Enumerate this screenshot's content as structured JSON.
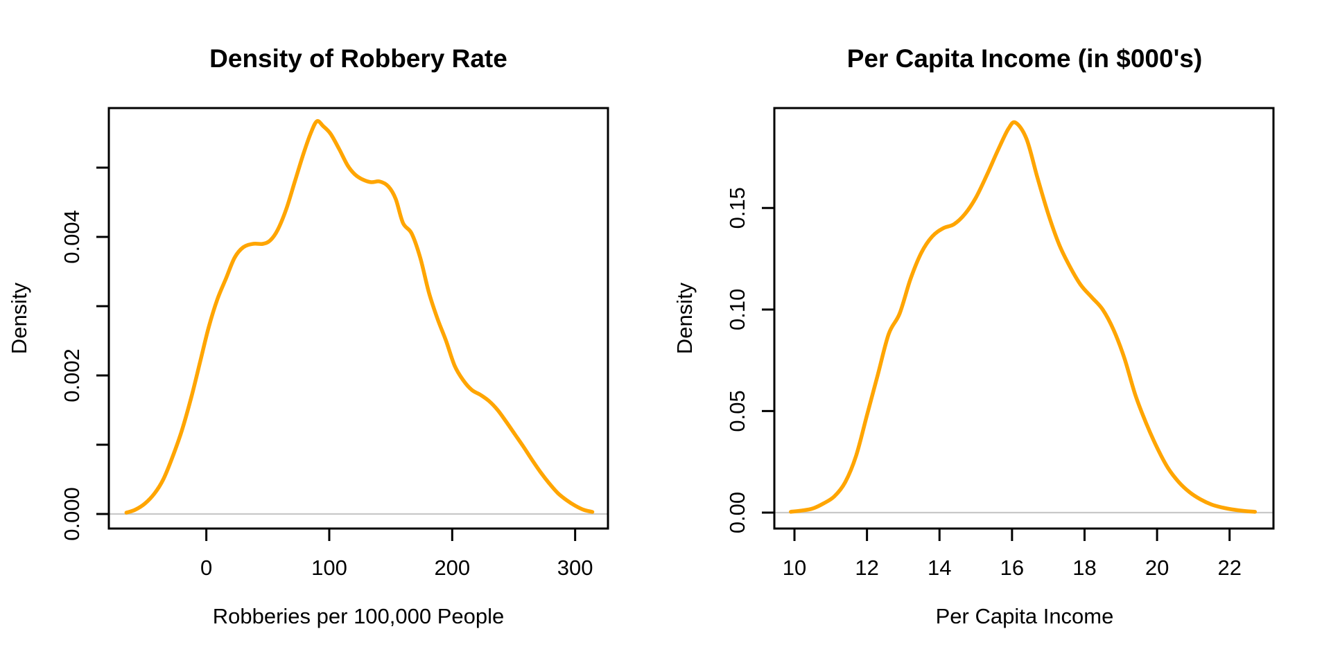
{
  "figure": {
    "background": "#ffffff",
    "axis_color": "#000000",
    "text_color": "#000000",
    "curve_color": "#FFA500",
    "zero_line_color": "#c8c8c8"
  },
  "chart_data": [
    {
      "type": "line",
      "variant": "kernel-density",
      "title": "Density of Robbery Rate",
      "xlabel": "Robberies per 100,000 People",
      "ylabel": "Density",
      "grid": false,
      "zero_line": true,
      "x_axis": {
        "ticks": [
          0,
          100,
          200,
          300
        ],
        "tick_labels": [
          "0",
          "100",
          "200",
          "300"
        ],
        "edge_range": [
          -79.3,
          326.7
        ]
      },
      "y_axis": {
        "ticks": [
          0,
          0.001,
          0.002,
          0.003,
          0.004,
          0.005
        ],
        "tick_labels": [
          "0.000",
          "",
          "0.002",
          "",
          "0.004",
          ""
        ],
        "edge_range": [
          -0.00021,
          0.00586
        ]
      },
      "series": [
        {
          "name": "density",
          "color": "#FFA500",
          "x": [
            -65,
            -58,
            -50,
            -42,
            -35,
            -28,
            -20,
            -12,
            -5,
            2,
            9,
            16,
            23,
            30,
            38,
            46,
            52,
            58,
            65,
            72,
            79,
            85,
            90,
            95,
            101,
            108,
            115,
            121,
            127,
            134,
            141,
            148,
            154,
            160,
            167,
            174,
            181,
            188,
            195,
            202,
            209,
            216,
            223,
            230,
            237,
            244,
            251,
            258,
            265,
            272,
            279,
            286,
            293,
            300,
            307,
            314
          ],
          "y": [
            2e-05,
            6e-05,
            0.00015,
            0.0003,
            0.0005,
            0.0008,
            0.0012,
            0.0017,
            0.0022,
            0.0027,
            0.0031,
            0.0034,
            0.0037,
            0.00385,
            0.0039,
            0.0039,
            0.00395,
            0.0041,
            0.0044,
            0.0048,
            0.0052,
            0.0055,
            0.00567,
            0.0056,
            0.00549,
            0.00527,
            0.00503,
            0.0049,
            0.00483,
            0.00479,
            0.0048,
            0.00473,
            0.00455,
            0.0042,
            0.00405,
            0.0037,
            0.0032,
            0.00282,
            0.0025,
            0.00214,
            0.00193,
            0.00179,
            0.00172,
            0.00163,
            0.0015,
            0.00133,
            0.00115,
            0.00097,
            0.00078,
            0.0006,
            0.00044,
            0.0003,
            0.0002,
            0.00012,
            6e-05,
            3e-05
          ]
        }
      ]
    },
    {
      "type": "line",
      "variant": "kernel-density",
      "title": "Per Capita Income (in $000's)",
      "xlabel": "Per Capita Income",
      "ylabel": "Density",
      "grid": false,
      "zero_line": true,
      "x_axis": {
        "ticks": [
          10,
          12,
          14,
          16,
          18,
          20,
          22
        ],
        "tick_labels": [
          "10",
          "12",
          "14",
          "16",
          "18",
          "20",
          "22"
        ],
        "edge_range": [
          9.445,
          23.21
        ]
      },
      "y_axis": {
        "ticks": [
          0,
          0.05,
          0.1,
          0.15
        ],
        "tick_labels": [
          "0.00",
          "0.05",
          "0.10",
          "0.15"
        ],
        "edge_range": [
          -0.00784,
          0.1992
        ]
      },
      "series": [
        {
          "name": "density",
          "color": "#FFA500",
          "x": [
            9.9,
            10.2,
            10.5,
            10.8,
            11.1,
            11.4,
            11.7,
            12.0,
            12.3,
            12.6,
            12.9,
            13.2,
            13.5,
            13.8,
            14.1,
            14.4,
            14.7,
            15.0,
            15.3,
            15.6,
            15.9,
            16.1,
            16.4,
            16.7,
            17.0,
            17.3,
            17.6,
            17.9,
            18.2,
            18.5,
            18.8,
            19.1,
            19.4,
            19.7,
            20.0,
            20.3,
            20.6,
            20.9,
            21.2,
            21.5,
            21.8,
            22.1,
            22.4,
            22.7
          ],
          "y": [
            0.0004,
            0.001,
            0.002,
            0.0045,
            0.008,
            0.015,
            0.028,
            0.048,
            0.068,
            0.088,
            0.098,
            0.115,
            0.128,
            0.136,
            0.14,
            0.142,
            0.147,
            0.155,
            0.166,
            0.178,
            0.189,
            0.192,
            0.184,
            0.165,
            0.147,
            0.132,
            0.121,
            0.112,
            0.106,
            0.1,
            0.09,
            0.076,
            0.058,
            0.044,
            0.032,
            0.022,
            0.015,
            0.01,
            0.0065,
            0.004,
            0.0025,
            0.0015,
            0.0008,
            0.0004
          ]
        }
      ]
    }
  ]
}
